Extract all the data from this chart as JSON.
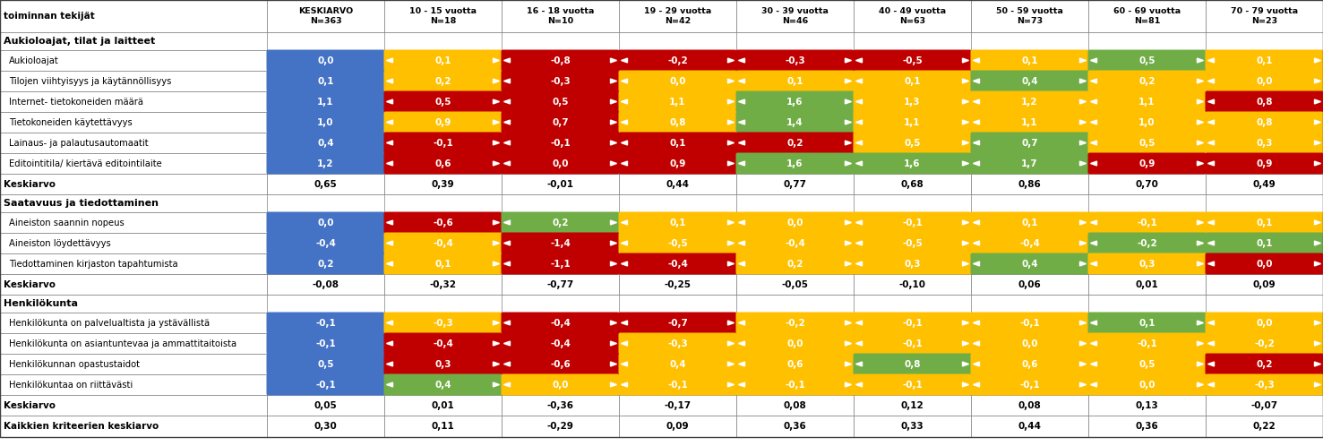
{
  "col_headers": [
    "toiminnan tekijät",
    "KESKIARVO\nN=363",
    "10 - 15 vuotta\nN=18",
    "16 - 18 vuotta\nN=10",
    "19 - 29 vuotta\nN=42",
    "30 - 39 vuotta\nN=46",
    "40 - 49 vuotta\nN=63",
    "50 - 59 vuotta\nN=73",
    "60 - 69 vuotta\nN=81",
    "70 - 79 vuotta\nN=23"
  ],
  "sections": [
    {
      "header": "Aukioloajat, tilat ja laitteet",
      "rows": [
        {
          "label": "Aukioloajat",
          "values": [
            0.0,
            0.1,
            -0.8,
            -0.2,
            -0.3,
            -0.5,
            0.1,
            0.5,
            0.1
          ]
        },
        {
          "label": "Tilojen viihtyisyys ja käytännöllisyys",
          "values": [
            0.1,
            0.2,
            -0.3,
            0.0,
            0.1,
            0.1,
            0.4,
            0.2,
            0.0
          ]
        },
        {
          "label": "Internet- tietokoneiden määrä",
          "values": [
            1.1,
            0.5,
            0.5,
            1.1,
            1.6,
            1.3,
            1.2,
            1.1,
            0.8
          ]
        },
        {
          "label": "Tietokoneiden käytettävyys",
          "values": [
            1.0,
            0.9,
            0.7,
            0.8,
            1.4,
            1.1,
            1.1,
            1.0,
            0.8
          ]
        },
        {
          "label": "Lainaus- ja palautusautomaatit",
          "values": [
            0.4,
            -0.1,
            -0.1,
            0.1,
            0.2,
            0.5,
            0.7,
            0.5,
            0.3
          ]
        },
        {
          "label": "Editointitila/ kiertävä editointilaite",
          "values": [
            1.2,
            0.6,
            0.0,
            0.9,
            1.6,
            1.6,
            1.7,
            0.9,
            0.9
          ]
        }
      ],
      "avg_label": "Keskiarvo",
      "avg_values": [
        0.65,
        0.39,
        -0.01,
        0.44,
        0.77,
        0.68,
        0.86,
        0.7,
        0.49
      ]
    },
    {
      "header": "Saatavuus ja tiedottaminen",
      "rows": [
        {
          "label": "Aineiston saannin nopeus",
          "values": [
            0.0,
            -0.6,
            0.2,
            0.1,
            0.0,
            -0.1,
            0.1,
            -0.1,
            0.1
          ]
        },
        {
          "label": "Aineiston löydettävyys",
          "values": [
            -0.4,
            -0.4,
            -1.4,
            -0.5,
            -0.4,
            -0.5,
            -0.4,
            -0.2,
            0.1
          ]
        },
        {
          "label": "Tiedottaminen kirjaston tapahtumista",
          "values": [
            0.2,
            0.1,
            -1.1,
            -0.4,
            0.2,
            0.3,
            0.4,
            0.3,
            0.0
          ]
        }
      ],
      "avg_label": "Keskiarvo",
      "avg_values": [
        -0.08,
        -0.32,
        -0.77,
        -0.25,
        -0.05,
        -0.1,
        0.06,
        0.01,
        0.09
      ]
    },
    {
      "header": "Henkilökunta",
      "rows": [
        {
          "label": "Henkilökunta on palvelualtista ja ystävällistä",
          "values": [
            -0.1,
            -0.3,
            -0.4,
            -0.7,
            -0.2,
            -0.1,
            -0.1,
            0.1,
            0.0
          ]
        },
        {
          "label": "Henkilökunta on asiantuntevaa ja ammattitaitoista",
          "values": [
            -0.1,
            -0.4,
            -0.4,
            -0.3,
            0.0,
            -0.1,
            0.0,
            -0.1,
            -0.2
          ]
        },
        {
          "label": "Henkilökunnan opastustaidot",
          "values": [
            0.5,
            0.3,
            -0.6,
            0.4,
            0.6,
            0.8,
            0.6,
            0.5,
            0.2
          ]
        },
        {
          "label": "Henkilökuntaa on riittävästi",
          "values": [
            -0.1,
            0.4,
            0.0,
            -0.1,
            -0.1,
            -0.1,
            -0.1,
            0.0,
            -0.3
          ]
        }
      ],
      "avg_label": "Keskiarvo",
      "avg_values": [
        0.05,
        0.01,
        -0.36,
        -0.17,
        0.08,
        0.12,
        0.08,
        0.13,
        -0.07
      ]
    }
  ],
  "grand_avg_label": "Kaikkien kriteerien keskiarvo",
  "grand_avg_values": [
    0.3,
    0.11,
    -0.29,
    0.09,
    0.36,
    0.33,
    0.44,
    0.36,
    0.22
  ],
  "colors": {
    "blue": "#4472C4",
    "green": "#70AD47",
    "red": "#C00000",
    "yellow": "#FFC000",
    "white": "#FFFFFF",
    "border": "#808080"
  }
}
